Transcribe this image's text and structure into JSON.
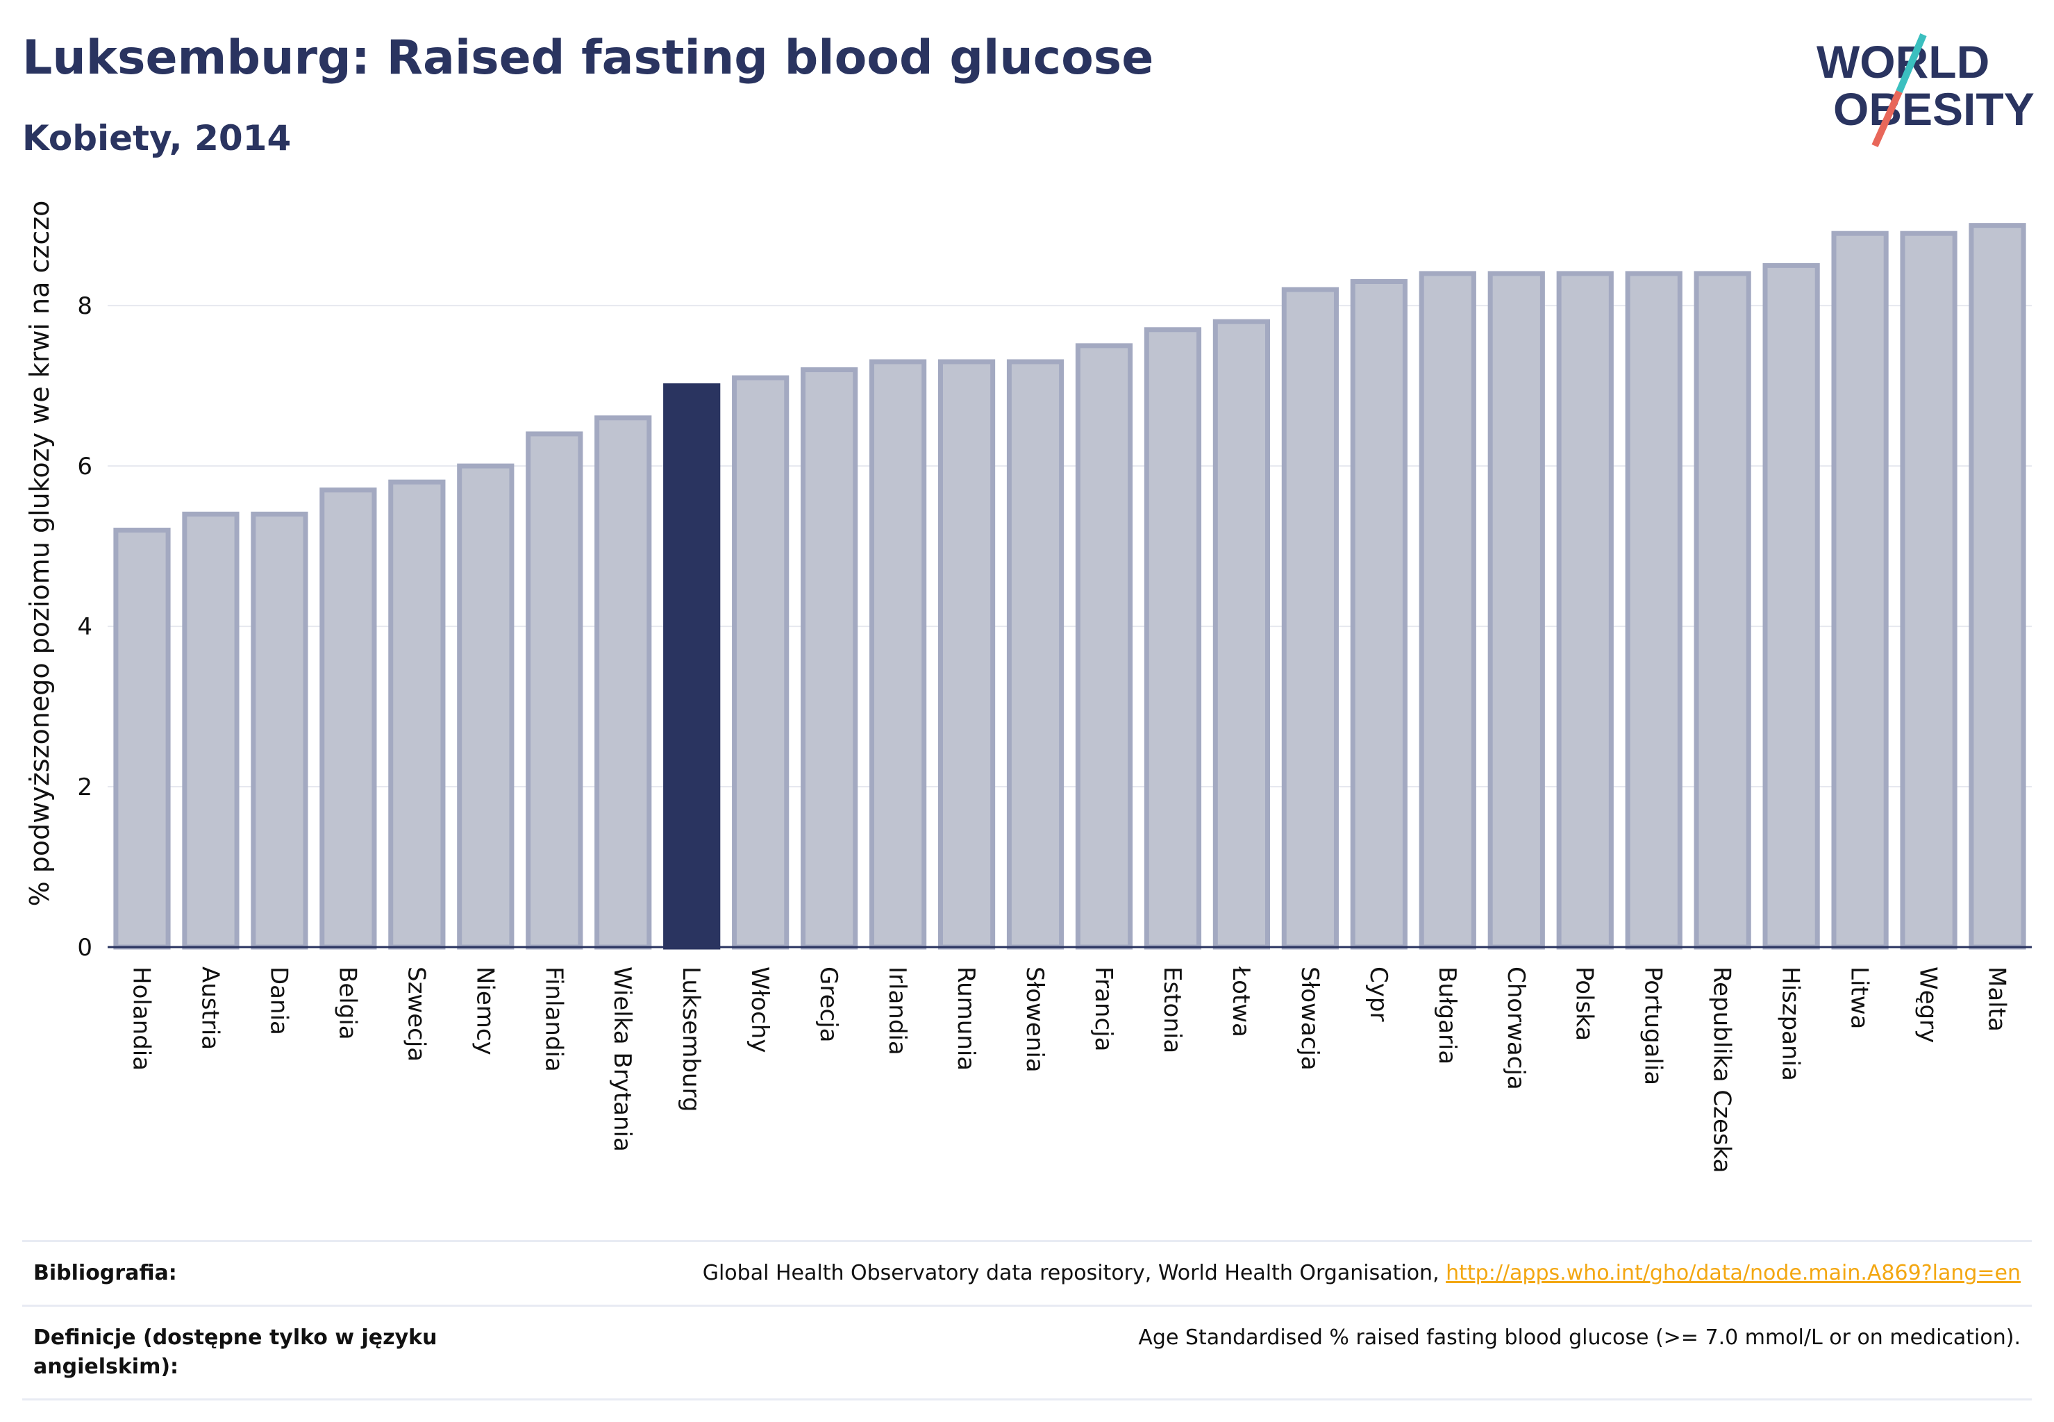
{
  "header": {
    "title": "Luksemburg: Raised fasting blood glucose",
    "subtitle": "Kobiety, 2014"
  },
  "logo": {
    "line1": "WORLD",
    "line2": "OBESITY",
    "colors": {
      "text": "#2a3460",
      "slash_teal": "#3bbfbf",
      "slash_coral": "#e8675a"
    }
  },
  "colors": {
    "bar": "#bfc3d0",
    "bar_outline": "#a3a9c1",
    "highlight": "#2a3460",
    "grid": "#e6e8ef",
    "axis": "#2a3460"
  },
  "chart_data": {
    "type": "bar",
    "title": "Luksemburg: Raised fasting blood glucose",
    "subtitle": "Kobiety, 2014",
    "ylabel": "% podwyższonego poziomu glukozy we krwi na czczo",
    "xlabel": "",
    "ylim": [
      0,
      9.3
    ],
    "yticks": [
      0,
      2,
      4,
      6,
      8
    ],
    "grid": true,
    "highlight": "Luksemburg",
    "categories": [
      "Holandia",
      "Austria",
      "Dania",
      "Belgia",
      "Szwecja",
      "Niemcy",
      "Finlandia",
      "Wielka Brytania",
      "Luksemburg",
      "Włochy",
      "Grecja",
      "Irlandia",
      "Rumunia",
      "Słowenia",
      "Francja",
      "Estonia",
      "Łotwa",
      "Słowacja",
      "Cypr",
      "Bułgaria",
      "Chorwacja",
      "Polska",
      "Portugalia",
      "Republika Czeska",
      "Hiszpania",
      "Litwa",
      "Węgry",
      "Malta"
    ],
    "values": [
      5.2,
      5.4,
      5.4,
      5.7,
      5.8,
      6.0,
      6.4,
      6.6,
      7.0,
      7.1,
      7.2,
      7.3,
      7.3,
      7.3,
      7.5,
      7.7,
      7.8,
      8.2,
      8.3,
      8.4,
      8.4,
      8.4,
      8.4,
      8.4,
      8.5,
      8.9,
      8.9,
      9.0
    ]
  },
  "footer": {
    "bibliography_label": "Bibliografia:",
    "bibliography_text": "Global Health Observatory data repository, World Health Organisation, ",
    "bibliography_link": "http://apps.who.int/gho/data/node.main.A869?lang=en",
    "definition_label": "Definicje (dostępne tylko w języku angielskim):",
    "definition_text": "Age Standardised % raised fasting blood glucose (>= 7.0 mmol/L or on medication)."
  }
}
